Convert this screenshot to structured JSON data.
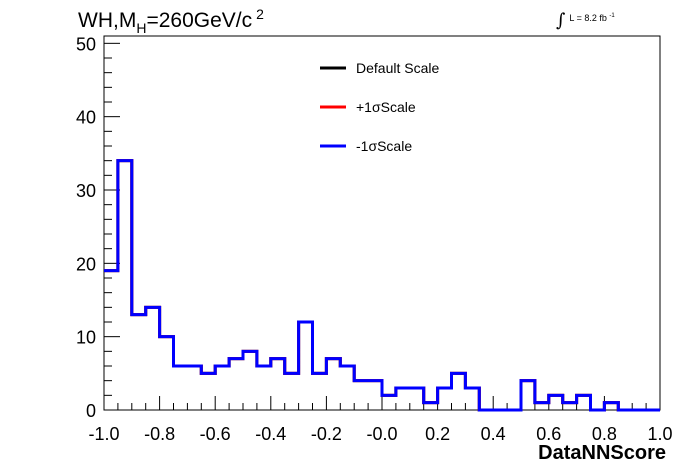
{
  "title": {
    "prefix": "WH,M",
    "sub": "H",
    "middle": "=260GeV/c",
    "sup": "2"
  },
  "lumi": {
    "text": "L = 8.2 fb",
    "sup": "-1"
  },
  "chart_data": {
    "type": "step",
    "xlabel": "DataNNScore",
    "xlim": [
      -1.0,
      1.0
    ],
    "ylim": [
      0,
      51
    ],
    "xticks": [
      "-1.0",
      "-0.8",
      "-0.6",
      "-0.4",
      "-0.2",
      "-0.0",
      "0.2",
      "0.4",
      "0.6",
      "0.8",
      "1.0"
    ],
    "yticks": [
      "0",
      "10",
      "20",
      "30",
      "40",
      "50"
    ],
    "bin_edges": [
      -1.0,
      -0.95,
      -0.9,
      -0.85,
      -0.8,
      -0.75,
      -0.7,
      -0.65,
      -0.6,
      -0.55,
      -0.5,
      -0.45,
      -0.4,
      -0.35,
      -0.3,
      -0.25,
      -0.2,
      -0.15,
      -0.1,
      -0.05,
      0.0,
      0.05,
      0.1,
      0.15,
      0.2,
      0.25,
      0.3,
      0.35,
      0.4,
      0.45,
      0.5,
      0.55,
      0.6,
      0.65,
      0.7,
      0.75,
      0.8,
      0.85,
      0.9,
      0.95,
      1.0
    ],
    "legend_position": "top-center",
    "series": [
      {
        "name": "Default Scale",
        "color": "#000000",
        "values": [
          19,
          34,
          13,
          14,
          10,
          6,
          6,
          5,
          6,
          7,
          8,
          6,
          7,
          5,
          12,
          5,
          7,
          6,
          4,
          4,
          2,
          3,
          3,
          1,
          3,
          5,
          3,
          0,
          0,
          0,
          4,
          1,
          2,
          1,
          2,
          0,
          1,
          0,
          0,
          0
        ]
      },
      {
        "name": "+1σScale",
        "color": "#ff0000",
        "values": [
          19,
          34,
          13,
          14,
          10,
          6,
          6,
          5,
          6,
          7,
          8,
          6,
          7,
          5,
          12,
          5,
          7,
          6,
          4,
          4,
          2,
          3,
          3,
          1,
          3,
          5,
          3,
          0,
          0,
          0,
          4,
          1,
          2,
          1,
          2,
          0,
          1,
          0,
          0,
          0
        ]
      },
      {
        "name": "-1σScale",
        "color": "#0000ff",
        "values": [
          19,
          34,
          13,
          14,
          10,
          6,
          6,
          5,
          6,
          7,
          8,
          6,
          7,
          5,
          12,
          5,
          7,
          6,
          4,
          4,
          2,
          3,
          3,
          1,
          3,
          5,
          3,
          0,
          0,
          0,
          4,
          1,
          2,
          1,
          2,
          0,
          1,
          0,
          0,
          0
        ]
      }
    ]
  }
}
